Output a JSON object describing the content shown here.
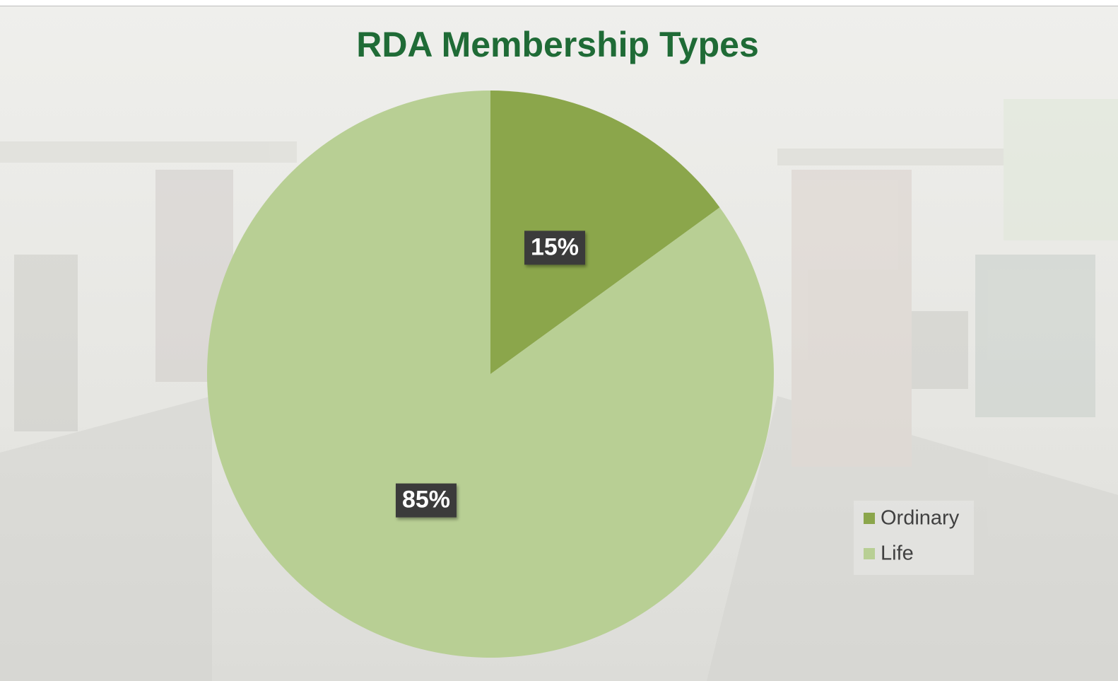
{
  "chart_data": {
    "type": "pie",
    "title": "RDA Membership Types",
    "categories": [
      "Ordinary",
      "Life"
    ],
    "values": [
      15,
      85
    ],
    "value_labels": [
      "15%",
      "85%"
    ],
    "colors": [
      "#8ba64b",
      "#b8cf94"
    ],
    "legend": "lower right"
  }
}
